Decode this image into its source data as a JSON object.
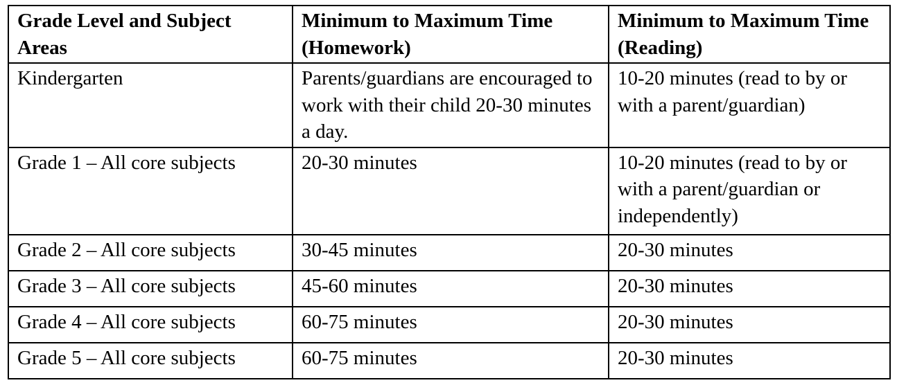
{
  "table": {
    "headers": [
      "Grade Level and Subject Areas",
      "Minimum to Maximum Time (Homework)",
      "Minimum to Maximum Time (Reading)"
    ],
    "rows": [
      [
        "Kindergarten",
        "Parents/guardians are encouraged to work with their child 20-30 minutes a day.",
        "10-20 minutes (read to by or with a parent/guardian)"
      ],
      [
        "Grade 1 – All core subjects",
        "20-30 minutes",
        "10-20 minutes (read to by or with a parent/guardian or independently)"
      ],
      [
        "Grade 2 – All core subjects",
        "30-45 minutes",
        "20-30 minutes"
      ],
      [
        "Grade 3 – All core subjects",
        "45-60 minutes",
        "20-30 minutes"
      ],
      [
        "Grade 4 – All core subjects",
        "60-75 minutes",
        "20-30 minutes"
      ],
      [
        "Grade 5 – All core subjects",
        "60-75 minutes",
        "20-30 minutes"
      ]
    ]
  }
}
